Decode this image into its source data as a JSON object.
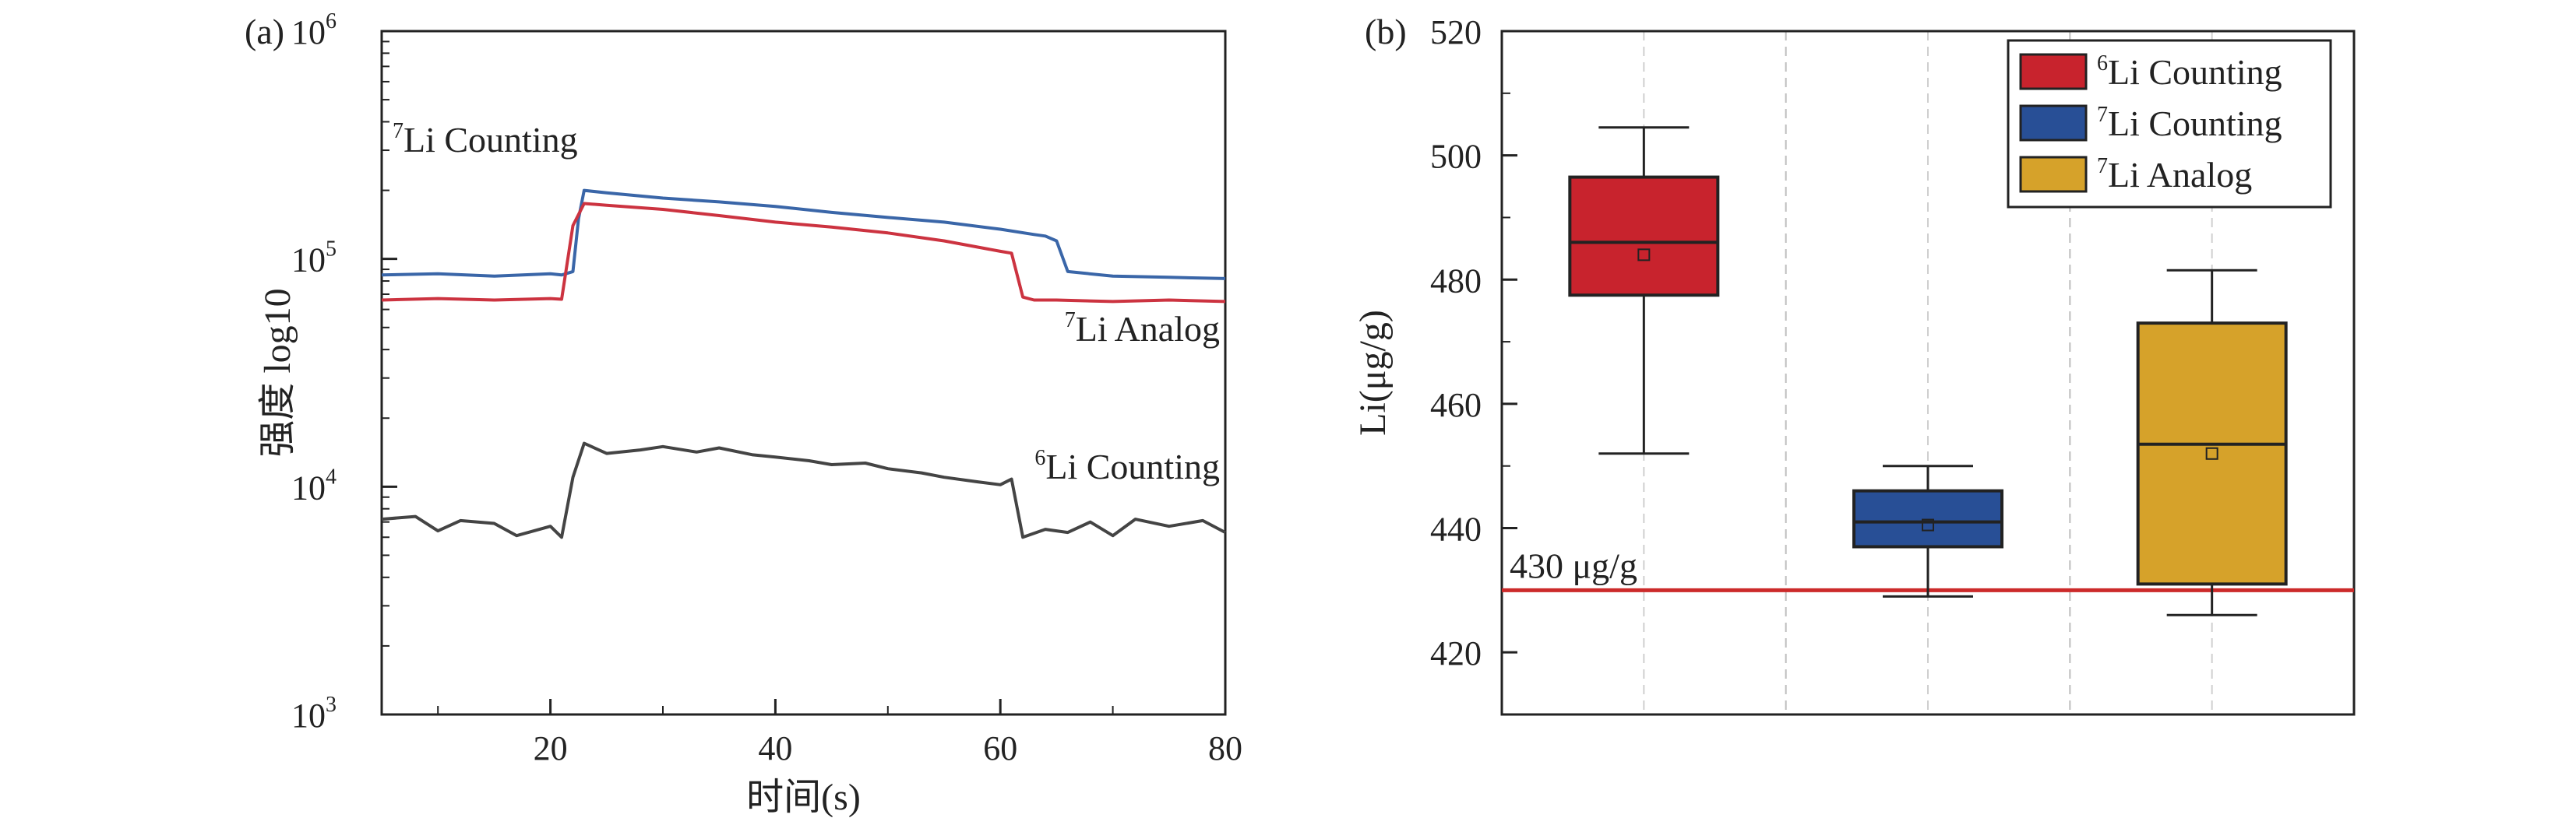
{
  "chart_data": [
    {
      "panel": "(a)",
      "type": "line",
      "xlabel": "时间(s)",
      "ylabel": "强度 log10",
      "xlim": [
        5,
        80
      ],
      "xticks": [
        20,
        40,
        60,
        80
      ],
      "yscale": "log",
      "ylim": [
        1000,
        1000000
      ],
      "yticks": [
        {
          "base": "10",
          "exp": "3",
          "value": 1000
        },
        {
          "base": "10",
          "exp": "4",
          "value": 10000
        },
        {
          "base": "10",
          "exp": "5",
          "value": 100000
        },
        {
          "base": "10",
          "exp": "6",
          "value": 1000000
        }
      ],
      "grid": false,
      "series": [
        {
          "key": "li7_counting",
          "color": "#3a66a8",
          "label_sup": "7",
          "label_text": "Li Counting",
          "x": [
            5,
            10,
            15,
            20,
            21,
            22,
            22.5,
            23,
            25,
            30,
            35,
            40,
            45,
            50,
            55,
            60,
            63,
            64,
            65,
            66,
            70,
            75,
            80
          ],
          "y": [
            85000,
            86000,
            84000,
            86000,
            85000,
            88000,
            150000,
            200000,
            195000,
            185000,
            178000,
            170000,
            160000,
            152000,
            145000,
            135000,
            128000,
            126000,
            120000,
            88000,
            84000,
            83000,
            82000
          ]
        },
        {
          "key": "li7_analog",
          "color": "#cc3340",
          "label_sup": "7",
          "label_text": "Li Analog",
          "x": [
            5,
            10,
            15,
            20,
            21,
            22,
            23,
            25,
            30,
            35,
            40,
            45,
            50,
            55,
            60,
            61,
            62,
            63,
            65,
            70,
            75,
            80
          ],
          "y": [
            66000,
            67000,
            66000,
            67000,
            66500,
            140000,
            175000,
            172000,
            165000,
            155000,
            145000,
            138000,
            130000,
            120000,
            108000,
            106000,
            68000,
            66000,
            66000,
            65000,
            66000,
            65000
          ]
        },
        {
          "key": "li6_counting",
          "color": "#444444",
          "label_sup": "6",
          "label_text": "Li Counting",
          "x": [
            5,
            8,
            10,
            12,
            15,
            17,
            20,
            21,
            22,
            23,
            25,
            28,
            30,
            33,
            35,
            38,
            40,
            43,
            45,
            48,
            50,
            53,
            55,
            58,
            60,
            61,
            62,
            64,
            66,
            68,
            70,
            72,
            75,
            78,
            80
          ],
          "y": [
            7200,
            7400,
            6400,
            7100,
            6900,
            6100,
            6700,
            6000,
            11000,
            15500,
            14000,
            14500,
            15000,
            14200,
            14800,
            13800,
            13500,
            13000,
            12500,
            12700,
            12000,
            11500,
            11000,
            10500,
            10200,
            10800,
            6000,
            6500,
            6300,
            7000,
            6100,
            7200,
            6700,
            7100,
            6300
          ]
        }
      ]
    },
    {
      "panel": "(b)",
      "type": "box",
      "ylabel": "Li(μg/g)",
      "ylim": [
        410,
        520
      ],
      "yticks": [
        420,
        440,
        460,
        480,
        500,
        520
      ],
      "grid": "vertical dashed",
      "legend_position": "top-right",
      "reference_line": {
        "value": 430,
        "label": "430 μg/g",
        "color": "#cc2a2a"
      },
      "series": [
        {
          "key": "li6_counting",
          "label_sup": "6",
          "label_text": "Li Counting",
          "color": "#c8232d",
          "whisker_low": 452,
          "q1": 477.5,
          "median": 486,
          "q3": 496.5,
          "whisker_high": 504.5,
          "mean": 484
        },
        {
          "key": "li7_counting",
          "label_sup": "7",
          "label_text": "Li Counting",
          "color": "#284f96",
          "whisker_low": 429,
          "q1": 437,
          "median": 441,
          "q3": 446,
          "whisker_high": 450,
          "mean": 440.5
        },
        {
          "key": "li7_analog",
          "label_sup": "7",
          "label_text": "Li Analog",
          "color": "#d6a22a",
          "whisker_low": 426,
          "q1": 431,
          "median": 453.5,
          "q3": 473,
          "whisker_high": 481.5,
          "mean": 452
        }
      ]
    }
  ]
}
